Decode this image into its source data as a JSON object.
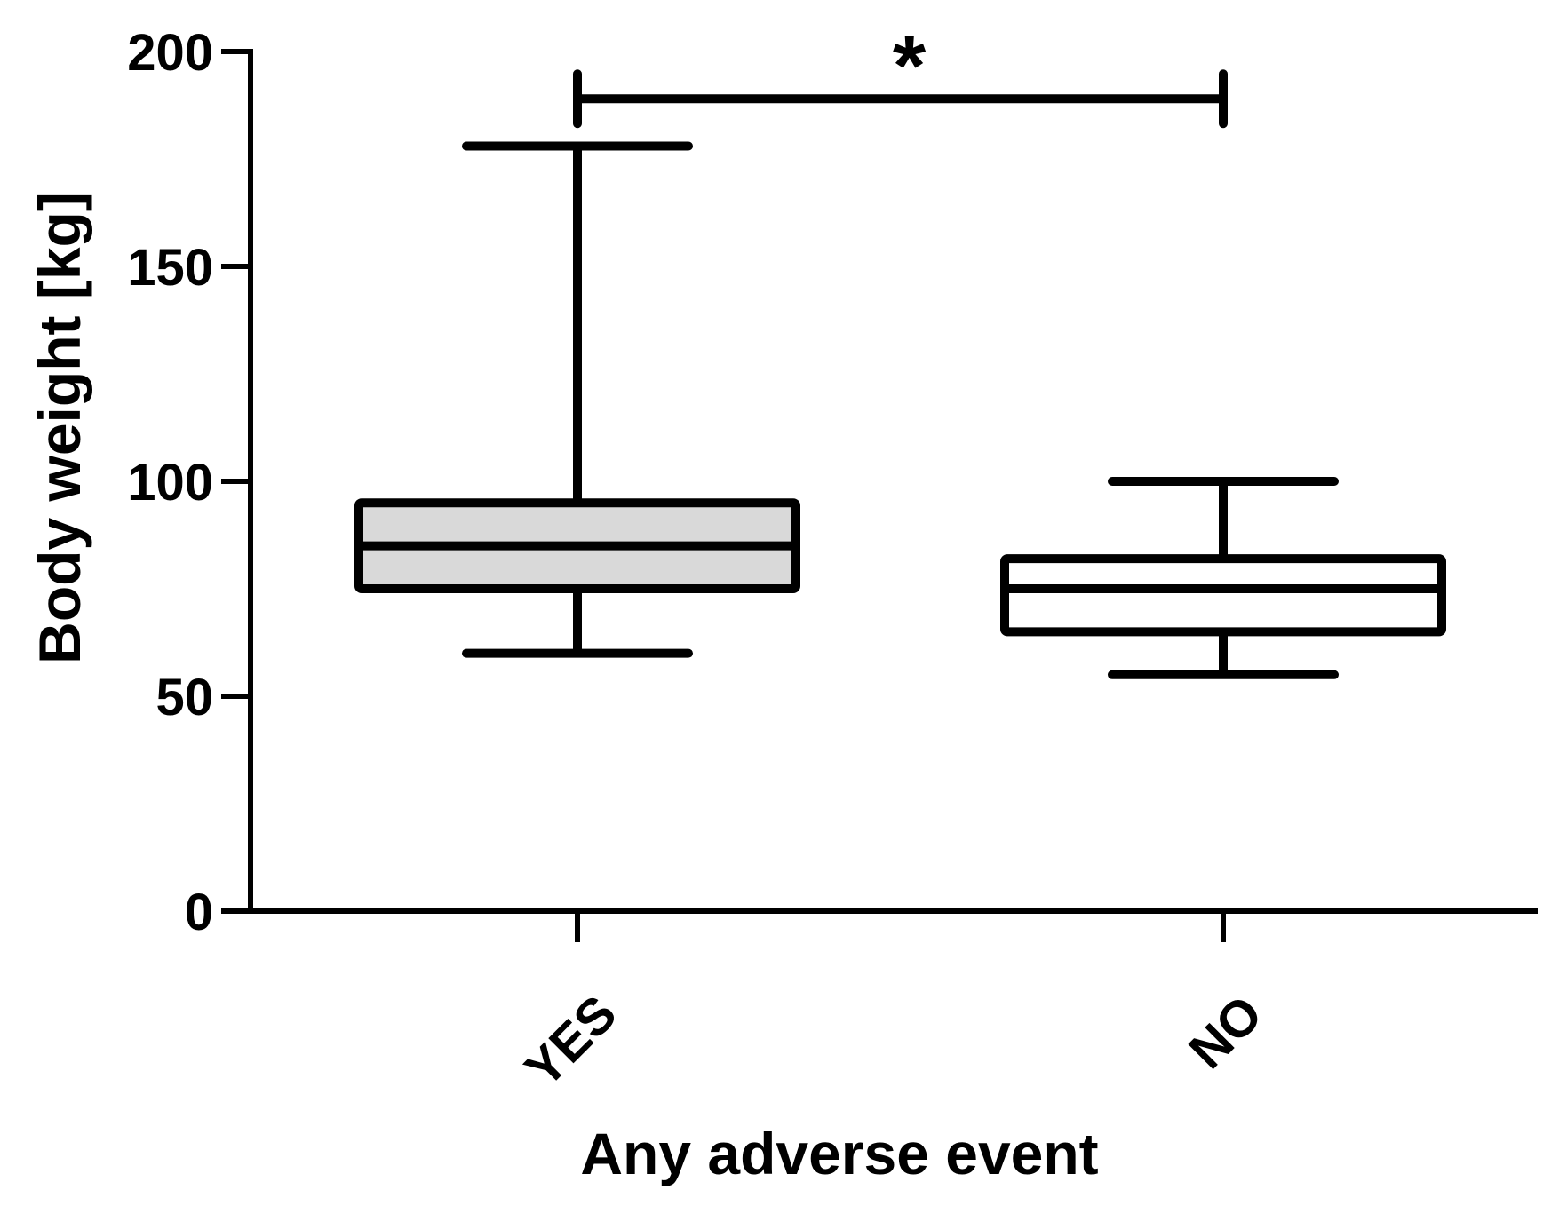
{
  "chart_data": {
    "type": "box",
    "xlabel": "Any adverse event",
    "ylabel": "Body weight [kg]",
    "ylim": [
      0,
      200
    ],
    "yticks": [
      0,
      50,
      100,
      150,
      200
    ],
    "categories": [
      "YES",
      "NO"
    ],
    "boxes": [
      {
        "category": "YES",
        "min": 60,
        "q1": 75,
        "median": 85,
        "q3": 95,
        "max": 178,
        "fill": "#d9d9d9"
      },
      {
        "category": "NO",
        "min": 55,
        "q1": 65,
        "median": 75,
        "q3": 82,
        "max": 100,
        "fill": "#ffffff"
      }
    ],
    "annotation": {
      "label": "*",
      "from": "YES",
      "to": "NO",
      "y": 189
    },
    "grid": false,
    "legend": "none"
  }
}
